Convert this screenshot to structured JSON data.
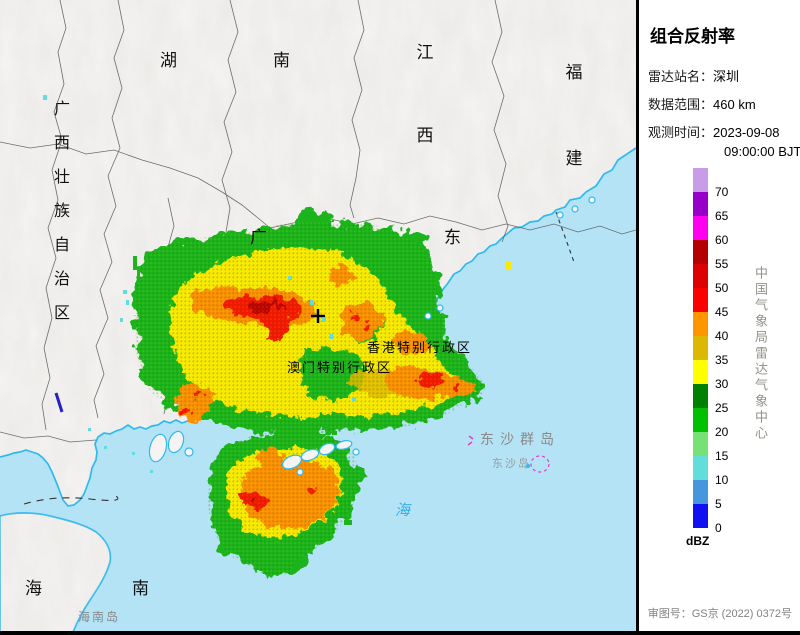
{
  "panel": {
    "title": "组合反射率",
    "rows": [
      {
        "label": "雷达站名：",
        "value": "深圳"
      },
      {
        "label": "数据范围：",
        "value": "460 km"
      },
      {
        "label": "观测时间：",
        "value": "2023-09-08",
        "value2": "09:00:00 BJT"
      }
    ],
    "unit": "dBZ",
    "watermark": "中国气象局雷达气象中心",
    "approval": "审图号：GS京 (2022) 0372号",
    "scale": {
      "ticks": [
        "70",
        "65",
        "60",
        "55",
        "50",
        "45",
        "40",
        "35",
        "30",
        "25",
        "20",
        "15",
        "10",
        "5",
        "0"
      ],
      "colors": [
        "#C89CE6",
        "#9600C8",
        "#FF00F0",
        "#B40000",
        "#DC0000",
        "#FB0000",
        "#FF9600",
        "#DCB800",
        "#FFFF00",
        "#008000",
        "#00C000",
        "#76E276",
        "#63DCDC",
        "#4596DC",
        "#1010F0"
      ]
    }
  },
  "map": {
    "labels": {
      "hunan": "湖南",
      "jiangxi": "江西",
      "fujian": "福建",
      "guangdong": "广东",
      "guangxi": "广西壮族自治区",
      "hainan": "海南",
      "hainandao": "海南岛",
      "hongkong": "香港特别行政区",
      "macau": "澳门特别行政区",
      "dongsha_islands": "东沙群岛",
      "dongsha_island": "东沙岛",
      "sea_char": "海"
    },
    "colors": {
      "sea": "#B4E3F6",
      "land": "#F5F4F2",
      "coastline": "#2FB9EE",
      "boundary": "#5F5F5F"
    }
  }
}
